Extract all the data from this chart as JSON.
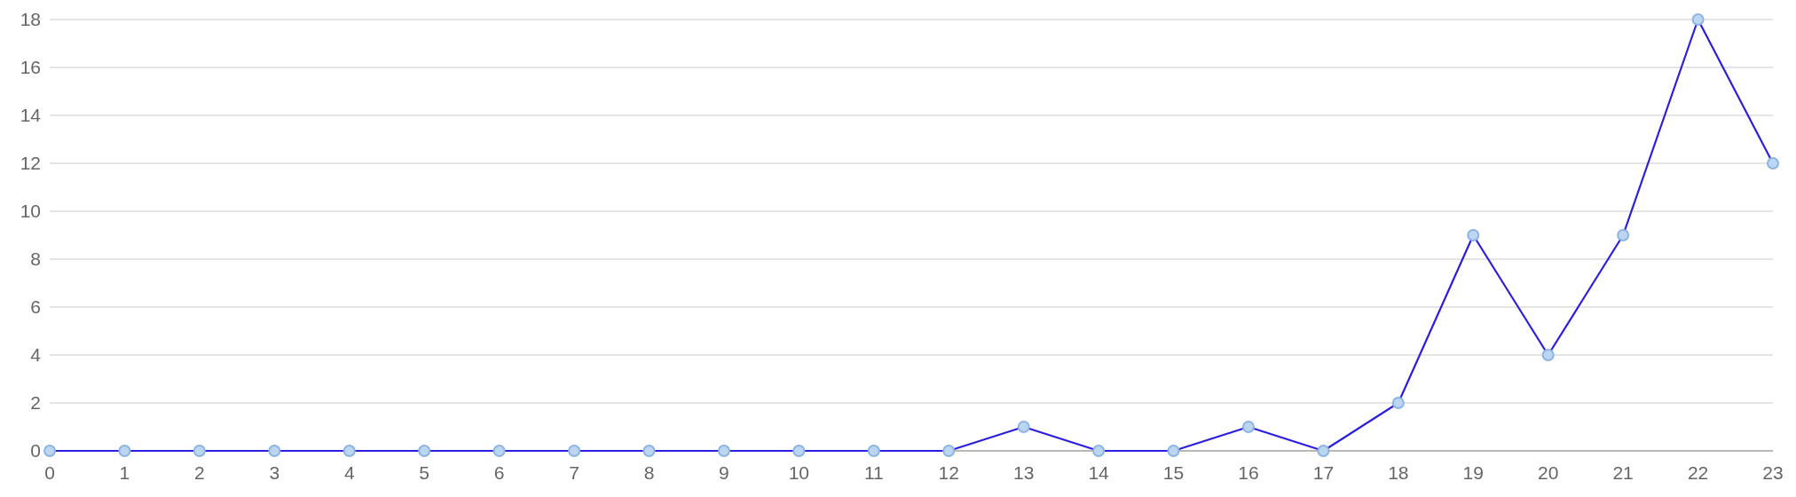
{
  "chart_data": {
    "type": "line",
    "x": [
      0,
      1,
      2,
      3,
      4,
      5,
      6,
      7,
      8,
      9,
      10,
      11,
      12,
      13,
      14,
      15,
      16,
      17,
      18,
      19,
      20,
      21,
      22,
      23
    ],
    "series": [
      {
        "color": "#2a1fe0",
        "values": [
          0,
          0,
          0,
          0,
          0,
          0,
          0,
          0,
          0,
          0,
          0,
          0,
          0,
          1,
          0,
          0,
          1,
          0,
          2,
          9,
          4,
          9,
          18,
          12
        ]
      }
    ],
    "xlim": [
      0,
      23
    ],
    "xticks": [
      0,
      1,
      2,
      3,
      4,
      5,
      6,
      7,
      8,
      9,
      10,
      11,
      12,
      13,
      14,
      15,
      16,
      17,
      18,
      19,
      20,
      21,
      22,
      23
    ],
    "ylim": [
      0,
      18
    ],
    "yticks": [
      0,
      2,
      4,
      6,
      8,
      10,
      12,
      14,
      16,
      18
    ],
    "grid": "y",
    "marker": "circle"
  }
}
